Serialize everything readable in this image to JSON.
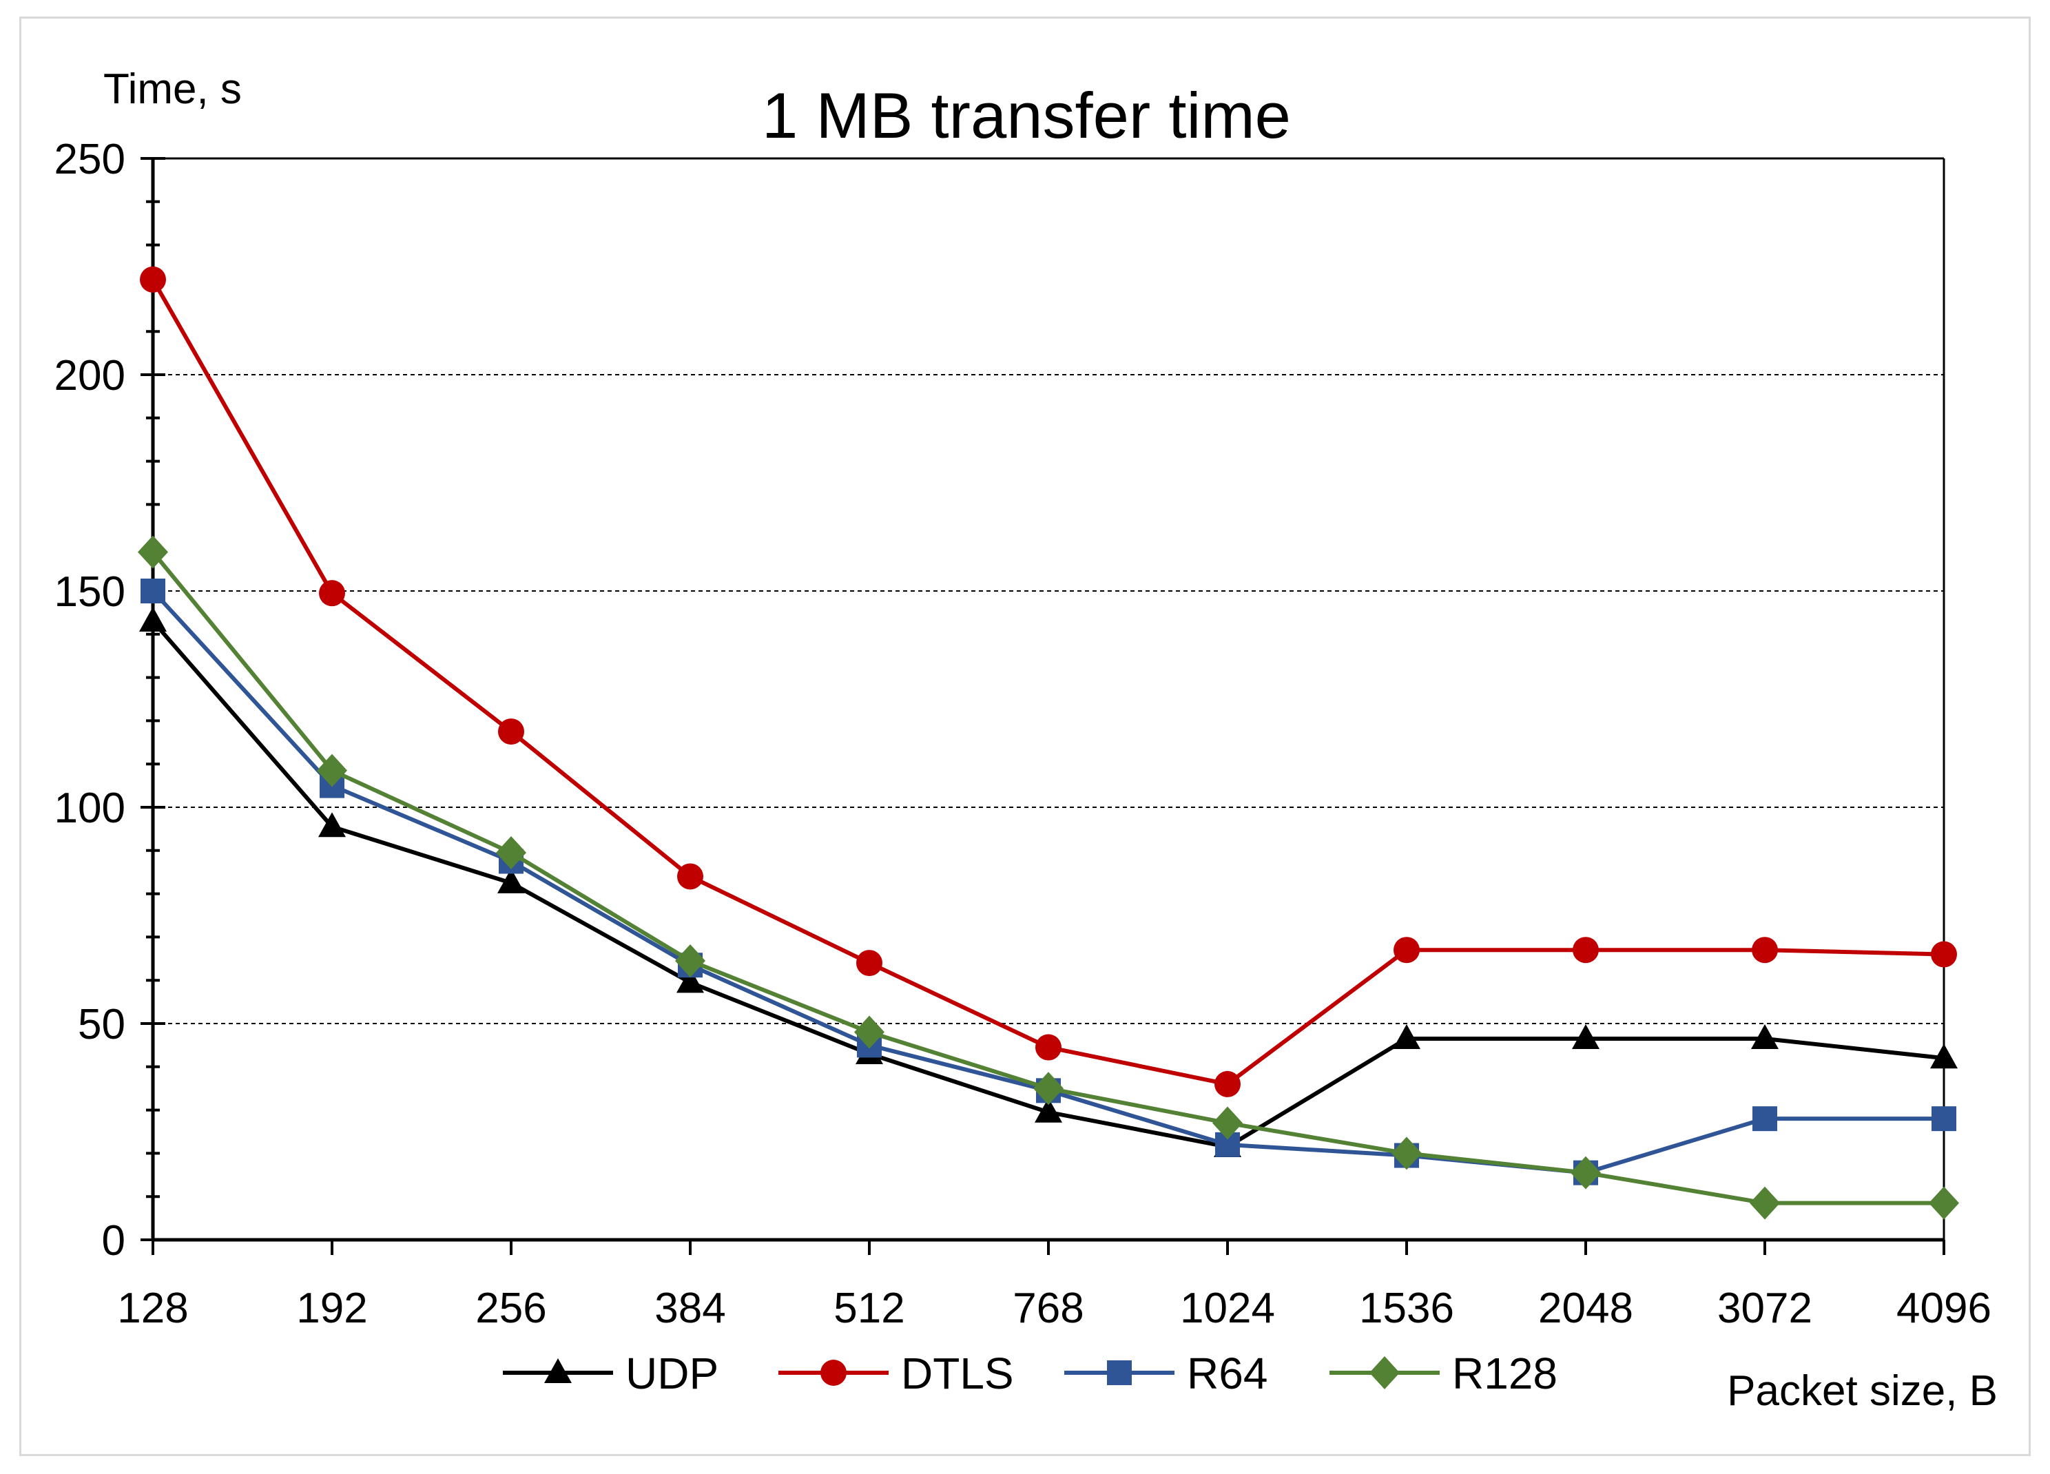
{
  "chart_data": {
    "type": "line",
    "title": "1 MB transfer time",
    "ylabel": "Time, s",
    "xlabel": "Packet size, B",
    "categories": [
      "128",
      "192",
      "256",
      "384",
      "512",
      "768",
      "1024",
      "1536",
      "2048",
      "3072",
      "4096"
    ],
    "ylim": [
      0,
      250
    ],
    "yticks": [
      0,
      50,
      100,
      150,
      200,
      250
    ],
    "grid": "horizontal-dashed",
    "legend_position": "bottom",
    "series": [
      {
        "name": "UDP",
        "marker": "triangle",
        "color": "#000000",
        "values": [
          143,
          95.5,
          82.5,
          59.5,
          43,
          29.5,
          21.5,
          46.5,
          46.5,
          46.5,
          42
        ]
      },
      {
        "name": "DTLS",
        "marker": "circle",
        "color": "#c00000",
        "values": [
          222,
          149.5,
          117.5,
          84,
          64,
          44.5,
          36,
          67,
          67,
          67,
          66
        ]
      },
      {
        "name": "R64",
        "marker": "square",
        "color": "#2f5597",
        "values": [
          150,
          105,
          87.5,
          63.5,
          45,
          34.5,
          22,
          19.5,
          15.5,
          28,
          28
        ]
      },
      {
        "name": "R128",
        "marker": "diamond",
        "color": "#548235",
        "values": [
          159,
          108.5,
          89.5,
          64.5,
          48,
          35,
          27,
          20,
          15.5,
          8.5,
          8.5
        ]
      }
    ]
  }
}
